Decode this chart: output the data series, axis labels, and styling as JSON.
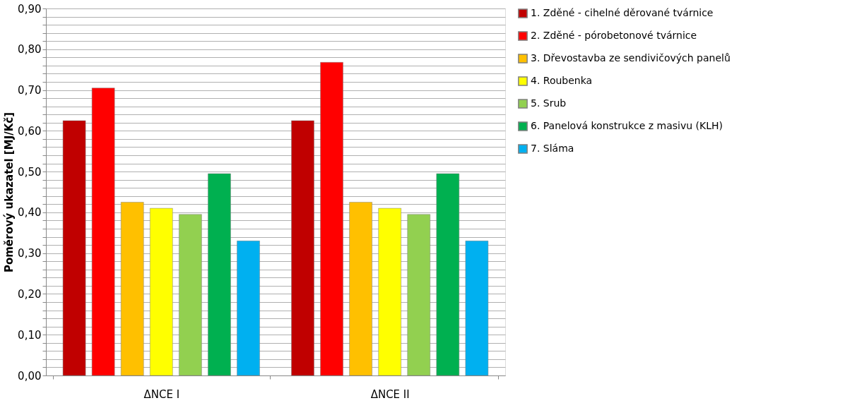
{
  "chart_data": {
    "type": "bar",
    "ylabel": "Poměrový ukazatel [MJ/Kč]",
    "categories": [
      "ΔNCE I",
      "ΔNCE II"
    ],
    "series": [
      {
        "name": "1. Zděné - cihelné děrované tvárnice",
        "color": "#c00000",
        "values": [
          0.625,
          0.625
        ]
      },
      {
        "name": "2. Zděné - pórobetonové tvárnice",
        "color": "#ff0000",
        "values": [
          0.705,
          0.768
        ]
      },
      {
        "name": "3. Dřevostavba  ze sendivičových panelů",
        "color": "#ffc000",
        "values": [
          0.425,
          0.425
        ]
      },
      {
        "name": "4. Roubenka",
        "color": "#ffff00",
        "values": [
          0.41,
          0.41
        ]
      },
      {
        "name": "5. Srub",
        "color": "#92d050",
        "values": [
          0.395,
          0.395
        ]
      },
      {
        "name": "6. Panelová konstrukce z masivu (KLH)",
        "color": "#00b050",
        "values": [
          0.495,
          0.495
        ]
      },
      {
        "name": "7. Sláma",
        "color": "#00b0f0",
        "values": [
          0.33,
          0.33
        ]
      }
    ],
    "ylim": [
      0,
      0.9
    ],
    "yticks": [
      {
        "value": 0,
        "label": "0,00"
      },
      {
        "value": 0.02,
        "label": null
      },
      {
        "value": 0.04,
        "label": null
      },
      {
        "value": 0.06,
        "label": null
      },
      {
        "value": 0.08,
        "label": null
      },
      {
        "value": 0.1,
        "label": "0,10"
      },
      {
        "value": 0.12,
        "label": null
      },
      {
        "value": 0.14,
        "label": null
      },
      {
        "value": 0.16,
        "label": null
      },
      {
        "value": 0.18,
        "label": null
      },
      {
        "value": 0.2,
        "label": "0,20"
      },
      {
        "value": 0.22,
        "label": null
      },
      {
        "value": 0.24,
        "label": null
      },
      {
        "value": 0.26,
        "label": null
      },
      {
        "value": 0.28,
        "label": null
      },
      {
        "value": 0.3,
        "label": "0,30"
      },
      {
        "value": 0.32,
        "label": null
      },
      {
        "value": 0.34,
        "label": null
      },
      {
        "value": 0.36,
        "label": null
      },
      {
        "value": 0.38,
        "label": null
      },
      {
        "value": 0.4,
        "label": "0,40"
      },
      {
        "value": 0.42,
        "label": null
      },
      {
        "value": 0.44,
        "label": null
      },
      {
        "value": 0.46,
        "label": null
      },
      {
        "value": 0.48,
        "label": null
      },
      {
        "value": 0.5,
        "label": "0,50"
      },
      {
        "value": 0.52,
        "label": null
      },
      {
        "value": 0.54,
        "label": null
      },
      {
        "value": 0.56,
        "label": null
      },
      {
        "value": 0.58,
        "label": null
      },
      {
        "value": 0.6,
        "label": "0,60"
      },
      {
        "value": 0.62,
        "label": null
      },
      {
        "value": 0.64,
        "label": null
      },
      {
        "value": 0.66,
        "label": null
      },
      {
        "value": 0.68,
        "label": null
      },
      {
        "value": 0.7,
        "label": "0,70"
      },
      {
        "value": 0.72,
        "label": null
      },
      {
        "value": 0.74,
        "label": null
      },
      {
        "value": 0.76,
        "label": null
      },
      {
        "value": 0.78,
        "label": null
      },
      {
        "value": 0.8,
        "label": "0,80"
      },
      {
        "value": 0.82,
        "label": null
      },
      {
        "value": 0.84,
        "label": null
      },
      {
        "value": 0.86,
        "label": null
      },
      {
        "value": 0.88,
        "label": null
      },
      {
        "value": 0.9,
        "label": "0,90"
      }
    ],
    "grid": "y",
    "legend": "right"
  }
}
